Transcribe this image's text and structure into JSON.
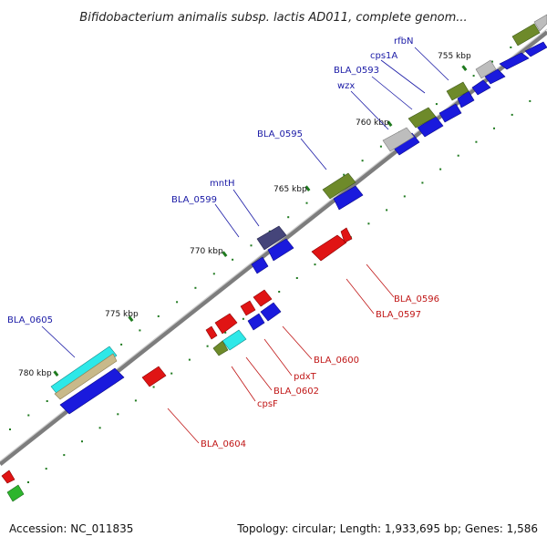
{
  "title": "Bifidobacterium animalis subsp. lactis AD011, complete genom...",
  "footer": {
    "accession": "Accession: NC_011835",
    "summary": "Topology: circular; Length: 1,933,695 bp; Genes: 1,586"
  },
  "colors": {
    "blue_feature": "#1a1add",
    "red_feature": "#e01414",
    "olive_feature": "#6e8a2a",
    "grey_feature": "#bdbdbd",
    "cyan_feature": "#2ee8e8",
    "tan_feature": "#c8b98a",
    "purple_feature": "#45457a",
    "green_feature": "#2db52d",
    "blue_label": "#1a1aa6",
    "red_label": "#c01616",
    "backbone": "#8a8a8a",
    "tick": "#1f7a1f"
  },
  "kbp_labels": [
    "755 kbp",
    "760 kbp",
    "765 kbp",
    "770 kbp",
    "775 kbp",
    "780 kbp"
  ],
  "gene_labels_blue": [
    "rfbN",
    "cps1A",
    "BLA_0593",
    "wzx",
    "BLA_0595",
    "mntH",
    "BLA_0599",
    "BLA_0605"
  ],
  "gene_labels_red": [
    "BLA_0596",
    "BLA_0597",
    "BLA_0600",
    "pdxT",
    "BLA_0602",
    "cpsF",
    "BLA_0604"
  ]
}
